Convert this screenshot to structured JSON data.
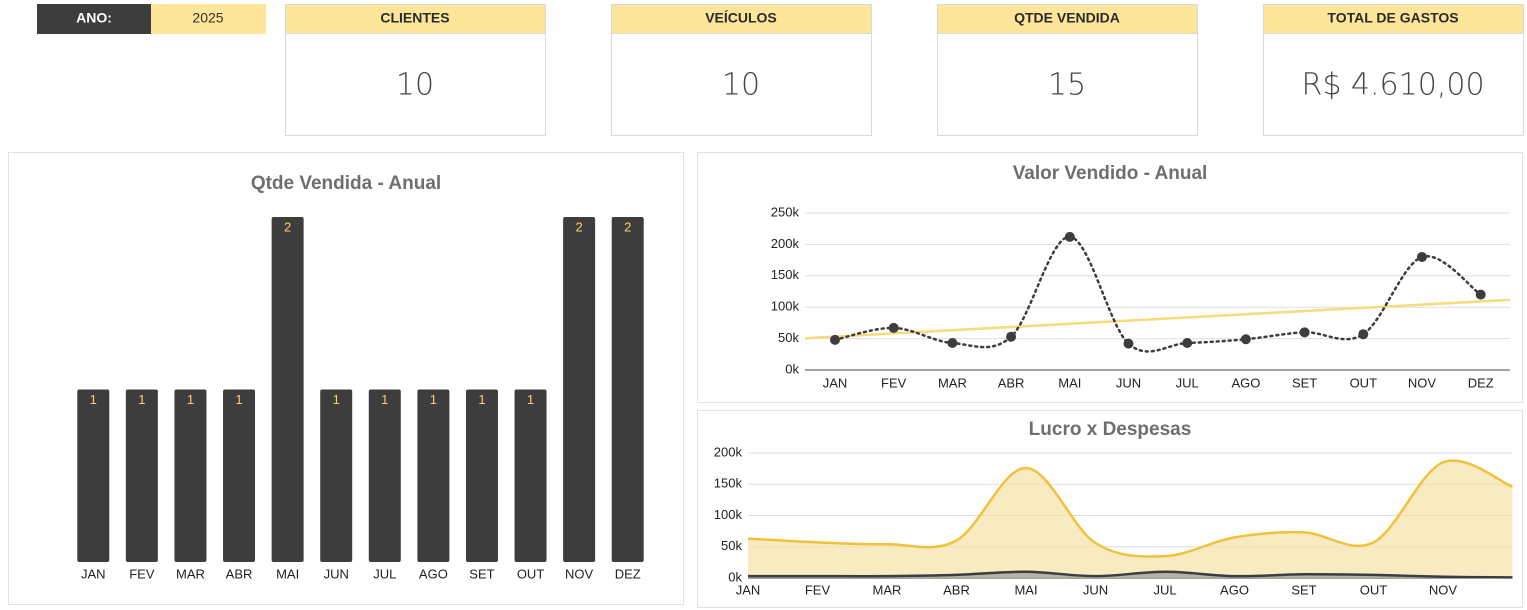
{
  "filter": {
    "label": "ANO:",
    "value": "2025"
  },
  "kpis": [
    {
      "title": "CLIENTES",
      "value": "10"
    },
    {
      "title": "VEÍCULOS",
      "value": "10"
    },
    {
      "title": "QTDE VENDIDA",
      "value": "15"
    },
    {
      "title": "TOTAL DE GASTOS",
      "value": "R$ 4.610,00"
    }
  ],
  "chart_data": [
    {
      "type": "bar",
      "title": "Qtde Vendida - Anual",
      "categories": [
        "JAN",
        "FEV",
        "MAR",
        "ABR",
        "MAI",
        "JUN",
        "JUL",
        "AGO",
        "SET",
        "OUT",
        "NOV",
        "DEZ"
      ],
      "values": [
        1,
        1,
        1,
        1,
        2,
        1,
        1,
        1,
        1,
        1,
        2,
        2
      ],
      "color": "#3d3d3d",
      "label_color": "#f5d36b"
    },
    {
      "type": "line",
      "title": "Valor Vendido - Anual",
      "categories": [
        "JAN",
        "FEV",
        "MAR",
        "ABR",
        "MAI",
        "JUN",
        "JUL",
        "AGO",
        "SET",
        "OUT",
        "NOV",
        "DEZ"
      ],
      "series": [
        {
          "color": "#3d3d3d",
          "values": [
            48000,
            67000,
            43000,
            53000,
            212000,
            42000,
            43000,
            49000,
            60000,
            57000,
            180000,
            120000
          ]
        }
      ],
      "trendline": {
        "color": "#f8db7a"
      },
      "ylim": [
        0,
        250000
      ],
      "yticks": [
        {
          "value": 0,
          "label": "0k"
        },
        {
          "value": 50000,
          "label": "50k"
        },
        {
          "value": 100000,
          "label": "100k"
        },
        {
          "value": 150000,
          "label": "150k"
        },
        {
          "value": 200000,
          "label": "200k"
        },
        {
          "value": 250000,
          "label": "250k"
        }
      ],
      "grid": true
    },
    {
      "type": "area",
      "title": "Lucro x Despesas",
      "categories": [
        "JAN",
        "FEV",
        "MAR",
        "ABR",
        "MAI",
        "JUN",
        "JUL",
        "AGO",
        "SET",
        "OUT",
        "NOV",
        null
      ],
      "series": [
        {
          "color": "#f0c23b",
          "fill": "#f7e3a6",
          "values": [
            63000,
            57000,
            54000,
            60000,
            176000,
            56000,
            35000,
            65000,
            73000,
            57000,
            185000,
            146000
          ]
        },
        {
          "color": "#3d3d3d",
          "fill": "#9a9a9a",
          "values": [
            3000,
            3000,
            3000,
            5000,
            10000,
            3000,
            10000,
            3000,
            6000,
            5000,
            2000,
            1000
          ]
        }
      ],
      "ylim": [
        0,
        200000
      ],
      "yticks": [
        {
          "value": 0,
          "label": "0k"
        },
        {
          "value": 50000,
          "label": "50k"
        },
        {
          "value": 100000,
          "label": "100k"
        },
        {
          "value": 150000,
          "label": "150k"
        },
        {
          "value": 200000,
          "label": "200k"
        }
      ],
      "grid": true
    }
  ]
}
